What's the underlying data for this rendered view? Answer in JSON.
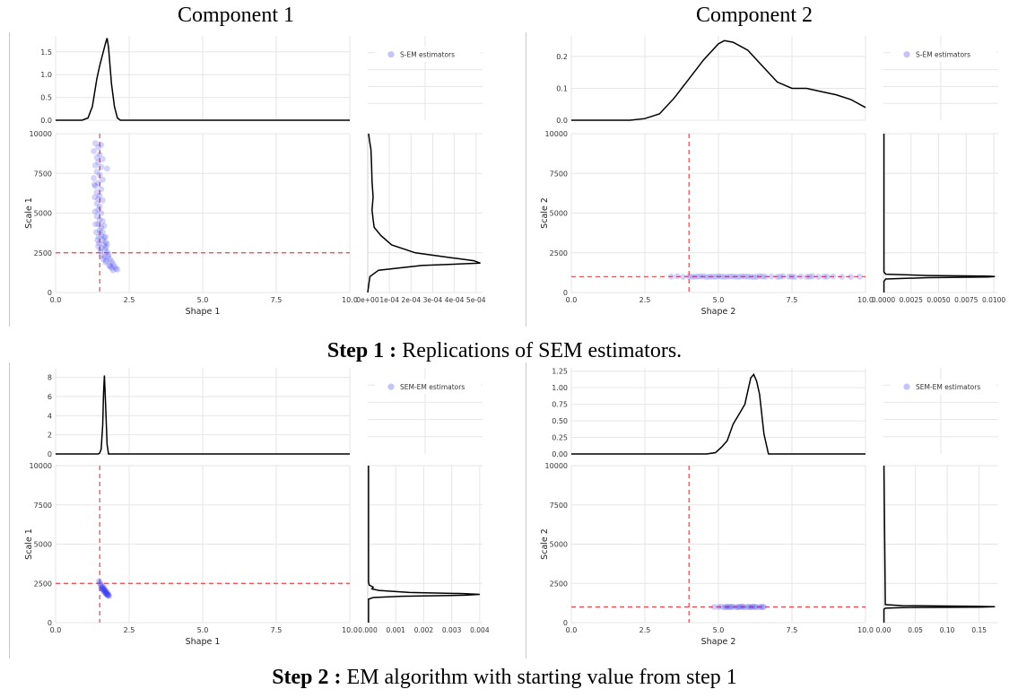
{
  "column_titles": [
    "Component 1",
    "Component 2"
  ],
  "captions": [
    {
      "bold": "Step 1 :",
      "text": " Replications of SEM estimators."
    },
    {
      "bold": "Step 2 :",
      "text": " EM algorithm with starting value from step 1"
    }
  ],
  "colors": {
    "points": "#3a3aee",
    "reference_line": "#e8454b",
    "density": "#000000",
    "grid": "#e6e6e6",
    "axis": "#d2d2d2"
  },
  "chart_data": [
    {
      "type": "scatter",
      "panel": "step1-component1",
      "legend": "S-EM estimators",
      "xlabel": "Shape  1",
      "ylabel": "Scale  1",
      "xlim": [
        0,
        10
      ],
      "ylim": [
        0,
        10000
      ],
      "xticks": [
        "0.0",
        "2.5",
        "5.0",
        "7.5",
        "10.0"
      ],
      "yticks": [
        "0",
        "2500",
        "5000",
        "7500",
        "10000"
      ],
      "ref_x": 1.5,
      "ref_y": 2500,
      "top_density": {
        "yticks": [
          "0.0",
          "0.5",
          "1.0",
          "1.5"
        ],
        "ylim": [
          0,
          1.85
        ],
        "x": [
          0.0,
          0.9,
          1.1,
          1.25,
          1.4,
          1.5,
          1.6,
          1.7,
          1.75,
          1.8,
          1.9,
          2.0,
          2.1,
          2.2,
          10.0
        ],
        "y": [
          0,
          0,
          0.05,
          0.3,
          0.9,
          1.2,
          1.45,
          1.7,
          1.8,
          1.6,
          0.8,
          0.3,
          0.05,
          0,
          0
        ]
      },
      "right_density": {
        "xticks": [
          "0e+00",
          "1e-04",
          "2e-04",
          "3e-04",
          "4e-04",
          "5e-04"
        ],
        "xlim": [
          0,
          0.00053
        ],
        "y": [
          0,
          1000,
          1400,
          1700,
          1850,
          2000,
          2200,
          2500,
          3000,
          3600,
          4100,
          4600,
          5200,
          6000,
          7000,
          8000,
          9000,
          9600,
          10000
        ],
        "x": [
          0,
          1e-05,
          5e-05,
          0.00025,
          0.00052,
          0.00049,
          0.00038,
          0.00022,
          0.00011,
          6e-05,
          3e-05,
          2.5e-05,
          2e-05,
          2.5e-05,
          2e-05,
          1.8e-05,
          1.5e-05,
          8e-06,
          4e-06
        ]
      },
      "points": [
        [
          1.35,
          9400
        ],
        [
          1.45,
          9150
        ],
        [
          1.55,
          9300
        ],
        [
          1.3,
          8900
        ],
        [
          1.5,
          8700
        ],
        [
          1.4,
          8500
        ],
        [
          1.6,
          8400
        ],
        [
          1.45,
          8200
        ],
        [
          1.35,
          8000
        ],
        [
          1.55,
          7900
        ],
        [
          1.75,
          7800
        ],
        [
          1.4,
          7600
        ],
        [
          1.5,
          7400
        ],
        [
          1.3,
          7200
        ],
        [
          1.6,
          7100
        ],
        [
          1.45,
          6900
        ],
        [
          1.35,
          6700
        ],
        [
          1.55,
          6500
        ],
        [
          1.4,
          6300
        ],
        [
          1.5,
          6100
        ],
        [
          1.45,
          5900
        ],
        [
          1.6,
          5800
        ],
        [
          1.4,
          5600
        ],
        [
          1.5,
          5400
        ],
        [
          1.45,
          5200
        ],
        [
          1.55,
          5000
        ],
        [
          1.4,
          4800
        ],
        [
          1.5,
          4600
        ],
        [
          1.6,
          4500
        ],
        [
          1.45,
          4300
        ],
        [
          1.55,
          4100
        ],
        [
          1.5,
          3900
        ],
        [
          1.6,
          3800
        ],
        [
          1.55,
          3600
        ],
        [
          1.65,
          3450
        ],
        [
          1.6,
          3300
        ],
        [
          1.7,
          3150
        ],
        [
          1.65,
          3000
        ],
        [
          1.72,
          2850
        ],
        [
          1.68,
          2700
        ],
        [
          1.75,
          2550
        ],
        [
          1.8,
          2400
        ],
        [
          1.78,
          2250
        ],
        [
          1.85,
          2100
        ],
        [
          1.9,
          1950
        ],
        [
          1.95,
          1800
        ],
        [
          2.0,
          1650
        ],
        [
          2.05,
          1500
        ],
        [
          1.9,
          1550
        ],
        [
          1.82,
          1700
        ],
        [
          1.7,
          1900
        ],
        [
          1.62,
          2100
        ],
        [
          1.58,
          2350
        ],
        [
          1.52,
          2600
        ],
        [
          1.45,
          2900
        ],
        [
          1.42,
          3300
        ],
        [
          1.38,
          3800
        ],
        [
          1.36,
          4300
        ],
        [
          1.34,
          5100
        ],
        [
          1.33,
          6000
        ],
        [
          1.32,
          6800
        ],
        [
          1.65,
          4200
        ],
        [
          1.7,
          3500
        ],
        [
          1.75,
          3050
        ],
        [
          1.95,
          1400
        ],
        [
          2.1,
          1450
        ],
        [
          1.85,
          1650
        ],
        [
          1.72,
          2000
        ],
        [
          1.66,
          2250
        ],
        [
          1.56,
          2800
        ],
        [
          1.48,
          3100
        ],
        [
          1.46,
          3500
        ]
      ]
    },
    {
      "type": "scatter",
      "panel": "step1-component2",
      "legend": "S-EM estimators",
      "xlabel": "Shape  2",
      "ylabel": "Scale  2",
      "xlim": [
        0,
        10
      ],
      "ylim": [
        0,
        10000
      ],
      "xticks": [
        "0.0",
        "2.5",
        "5.0",
        "7.5",
        "10.0"
      ],
      "yticks": [
        "0",
        "2500",
        "5000",
        "7500",
        "10000"
      ],
      "ref_x": 4.0,
      "ref_y": 1000,
      "top_density": {
        "yticks": [
          "0.0",
          "0.1",
          "0.2"
        ],
        "ylim": [
          0,
          0.265
        ],
        "x": [
          0.0,
          2.0,
          2.5,
          3.0,
          3.5,
          4.0,
          4.5,
          5.0,
          5.2,
          5.5,
          6.0,
          6.5,
          7.0,
          7.5,
          8.0,
          8.5,
          9.0,
          9.5,
          10.0
        ],
        "y": [
          0,
          0,
          0.005,
          0.02,
          0.07,
          0.13,
          0.19,
          0.24,
          0.25,
          0.245,
          0.22,
          0.17,
          0.12,
          0.1,
          0.1,
          0.09,
          0.08,
          0.065,
          0.04
        ]
      },
      "right_density": {
        "xticks": [
          "0.0000",
          "0.0025",
          "0.0050",
          "0.0075",
          "0.0100"
        ],
        "xlim": [
          0,
          0.0104
        ],
        "y": [
          0,
          700,
          850,
          930,
          970,
          1000,
          1030,
          1070,
          1150,
          1300,
          10000
        ],
        "x": [
          5e-05,
          5e-05,
          0.0002,
          0.004,
          0.0095,
          0.0101,
          0.0095,
          0.004,
          0.0002,
          5e-05,
          5e-05
        ]
      },
      "points": [
        [
          3.4,
          1000
        ],
        [
          3.6,
          1030
        ],
        [
          3.8,
          980
        ],
        [
          4.0,
          1010
        ],
        [
          4.2,
          990
        ],
        [
          4.4,
          1020
        ],
        [
          4.6,
          970
        ],
        [
          4.8,
          1000
        ],
        [
          5.0,
          1030
        ],
        [
          5.2,
          980
        ],
        [
          5.4,
          1010
        ],
        [
          5.6,
          990
        ],
        [
          5.8,
          1020
        ],
        [
          6.0,
          1000
        ],
        [
          6.2,
          970
        ],
        [
          6.4,
          1030
        ],
        [
          6.6,
          990
        ],
        [
          6.8,
          1010
        ],
        [
          7.0,
          980
        ],
        [
          7.2,
          1020
        ],
        [
          7.4,
          1000
        ],
        [
          7.6,
          970
        ],
        [
          7.8,
          1010
        ],
        [
          8.0,
          990
        ],
        [
          8.2,
          1020
        ],
        [
          8.4,
          980
        ],
        [
          8.6,
          1000
        ],
        [
          8.9,
          1010
        ],
        [
          9.2,
          990
        ],
        [
          9.5,
          980
        ],
        [
          9.8,
          1000
        ],
        [
          4.1,
          990
        ],
        [
          4.3,
          1005
        ],
        [
          4.5,
          1015
        ],
        [
          4.7,
          995
        ],
        [
          4.9,
          985
        ],
        [
          5.1,
          1005
        ],
        [
          5.3,
          995
        ],
        [
          5.5,
          1015
        ],
        [
          5.7,
          985
        ],
        [
          5.9,
          1005
        ],
        [
          6.1,
          995
        ],
        [
          6.3,
          985
        ],
        [
          6.5,
          1005
        ],
        [
          7.1,
          995
        ],
        [
          7.5,
          1005
        ],
        [
          8.1,
          1000
        ],
        [
          8.7,
          995
        ]
      ]
    },
    {
      "type": "scatter",
      "panel": "step2-component1",
      "legend": "SEM-EM estimators",
      "xlabel": "Shape  1",
      "ylabel": "Scale  1",
      "xlim": [
        0,
        10
      ],
      "ylim": [
        0,
        10000
      ],
      "xticks": [
        "0.0",
        "2.5",
        "5.0",
        "7.5",
        "10.0"
      ],
      "yticks": [
        "0",
        "2500",
        "5000",
        "7500",
        "10000"
      ],
      "ref_x": 1.5,
      "ref_y": 2500,
      "top_density": {
        "yticks": [
          "0",
          "2",
          "4",
          "6",
          "8"
        ],
        "ylim": [
          0,
          9
        ],
        "x": [
          0.0,
          1.45,
          1.5,
          1.55,
          1.6,
          1.63,
          1.66,
          1.7,
          1.75,
          1.8,
          10.0
        ],
        "y": [
          0,
          0,
          0.1,
          0.5,
          3,
          6.5,
          8.2,
          5,
          1,
          0,
          0
        ]
      },
      "right_density": {
        "xticks": [
          "0.000",
          "0.001",
          "0.002",
          "0.003",
          "0.004"
        ],
        "xlim": [
          0,
          0.0041
        ],
        "y": [
          0,
          1500,
          1600,
          1680,
          1750,
          1800,
          1850,
          1920,
          2050,
          2150,
          2250,
          2400,
          2600,
          10000
        ],
        "x": [
          3e-05,
          3e-05,
          0.0002,
          0.0012,
          0.0035,
          0.004,
          0.0034,
          0.0015,
          0.0004,
          0.00015,
          0.0002,
          5e-05,
          3e-05,
          3e-05
        ]
      },
      "points": [
        [
          1.48,
          2650
        ],
        [
          1.5,
          2550
        ],
        [
          1.52,
          2450
        ],
        [
          1.55,
          2380
        ],
        [
          1.57,
          2300
        ],
        [
          1.6,
          2230
        ],
        [
          1.62,
          2160
        ],
        [
          1.65,
          2090
        ],
        [
          1.67,
          2020
        ],
        [
          1.7,
          1960
        ],
        [
          1.72,
          1900
        ],
        [
          1.74,
          1840
        ],
        [
          1.76,
          1790
        ],
        [
          1.78,
          1750
        ],
        [
          1.8,
          1720
        ],
        [
          1.58,
          2180
        ],
        [
          1.63,
          2050
        ],
        [
          1.68,
          1900
        ],
        [
          1.73,
          1800
        ],
        [
          1.62,
          2300
        ],
        [
          1.66,
          2150
        ],
        [
          1.7,
          2050
        ],
        [
          1.75,
          1950
        ],
        [
          1.79,
          1820
        ],
        [
          1.55,
          2200
        ],
        [
          1.6,
          2100
        ],
        [
          1.65,
          2000
        ],
        [
          1.7,
          1870
        ],
        [
          1.77,
          1760
        ],
        [
          1.82,
          1700
        ]
      ]
    },
    {
      "type": "scatter",
      "panel": "step2-component2",
      "legend": "SEM-EM estimators",
      "xlabel": "Shape  2",
      "ylabel": "Scale  2",
      "xlim": [
        0,
        10
      ],
      "ylim": [
        0,
        10000
      ],
      "xticks": [
        "0.0",
        "2.5",
        "5.0",
        "7.5",
        "10.0"
      ],
      "yticks": [
        "0",
        "2500",
        "5000",
        "7500",
        "10000"
      ],
      "ref_x": 4.0,
      "ref_y": 1000,
      "top_density": {
        "yticks": [
          "0.00",
          "0.25",
          "0.50",
          "0.75",
          "1.00",
          "1.25"
        ],
        "ylim": [
          0,
          1.3
        ],
        "x": [
          0.0,
          4.6,
          4.9,
          5.1,
          5.3,
          5.5,
          5.7,
          5.9,
          6.0,
          6.1,
          6.2,
          6.3,
          6.4,
          6.55,
          6.7,
          10.0
        ],
        "y": [
          0,
          0,
          0.02,
          0.1,
          0.2,
          0.45,
          0.6,
          0.75,
          0.95,
          1.15,
          1.2,
          1.1,
          0.9,
          0.3,
          0,
          0
        ]
      },
      "right_density": {
        "xticks": [
          "0.00",
          "0.05",
          "0.10",
          "0.15"
        ],
        "xlim": [
          0,
          0.18
        ],
        "y": [
          0,
          850,
          920,
          960,
          990,
          1010,
          1040,
          1080,
          1150,
          10000
        ],
        "x": [
          0.0008,
          0.0008,
          0.003,
          0.03,
          0.15,
          0.175,
          0.14,
          0.03,
          0.003,
          0.0008
        ]
      },
      "points": [
        [
          5.0,
          1000
        ],
        [
          5.1,
          1020
        ],
        [
          5.2,
          980
        ],
        [
          5.3,
          1010
        ],
        [
          5.4,
          990
        ],
        [
          5.5,
          1020
        ],
        [
          5.6,
          980
        ],
        [
          5.7,
          1000
        ],
        [
          5.8,
          1030
        ],
        [
          5.9,
          970
        ],
        [
          6.0,
          1010
        ],
        [
          6.1,
          990
        ],
        [
          6.2,
          1020
        ],
        [
          6.3,
          980
        ],
        [
          6.4,
          1000
        ],
        [
          6.5,
          1010
        ],
        [
          5.25,
          995
        ],
        [
          5.45,
          1005
        ],
        [
          5.65,
          995
        ],
        [
          5.85,
          1005
        ],
        [
          6.05,
          995
        ],
        [
          6.25,
          1005
        ],
        [
          6.45,
          995
        ],
        [
          5.35,
          1000
        ],
        [
          5.75,
          1000
        ],
        [
          6.15,
          1000
        ],
        [
          4.85,
          1000
        ],
        [
          6.55,
          995
        ]
      ]
    }
  ]
}
